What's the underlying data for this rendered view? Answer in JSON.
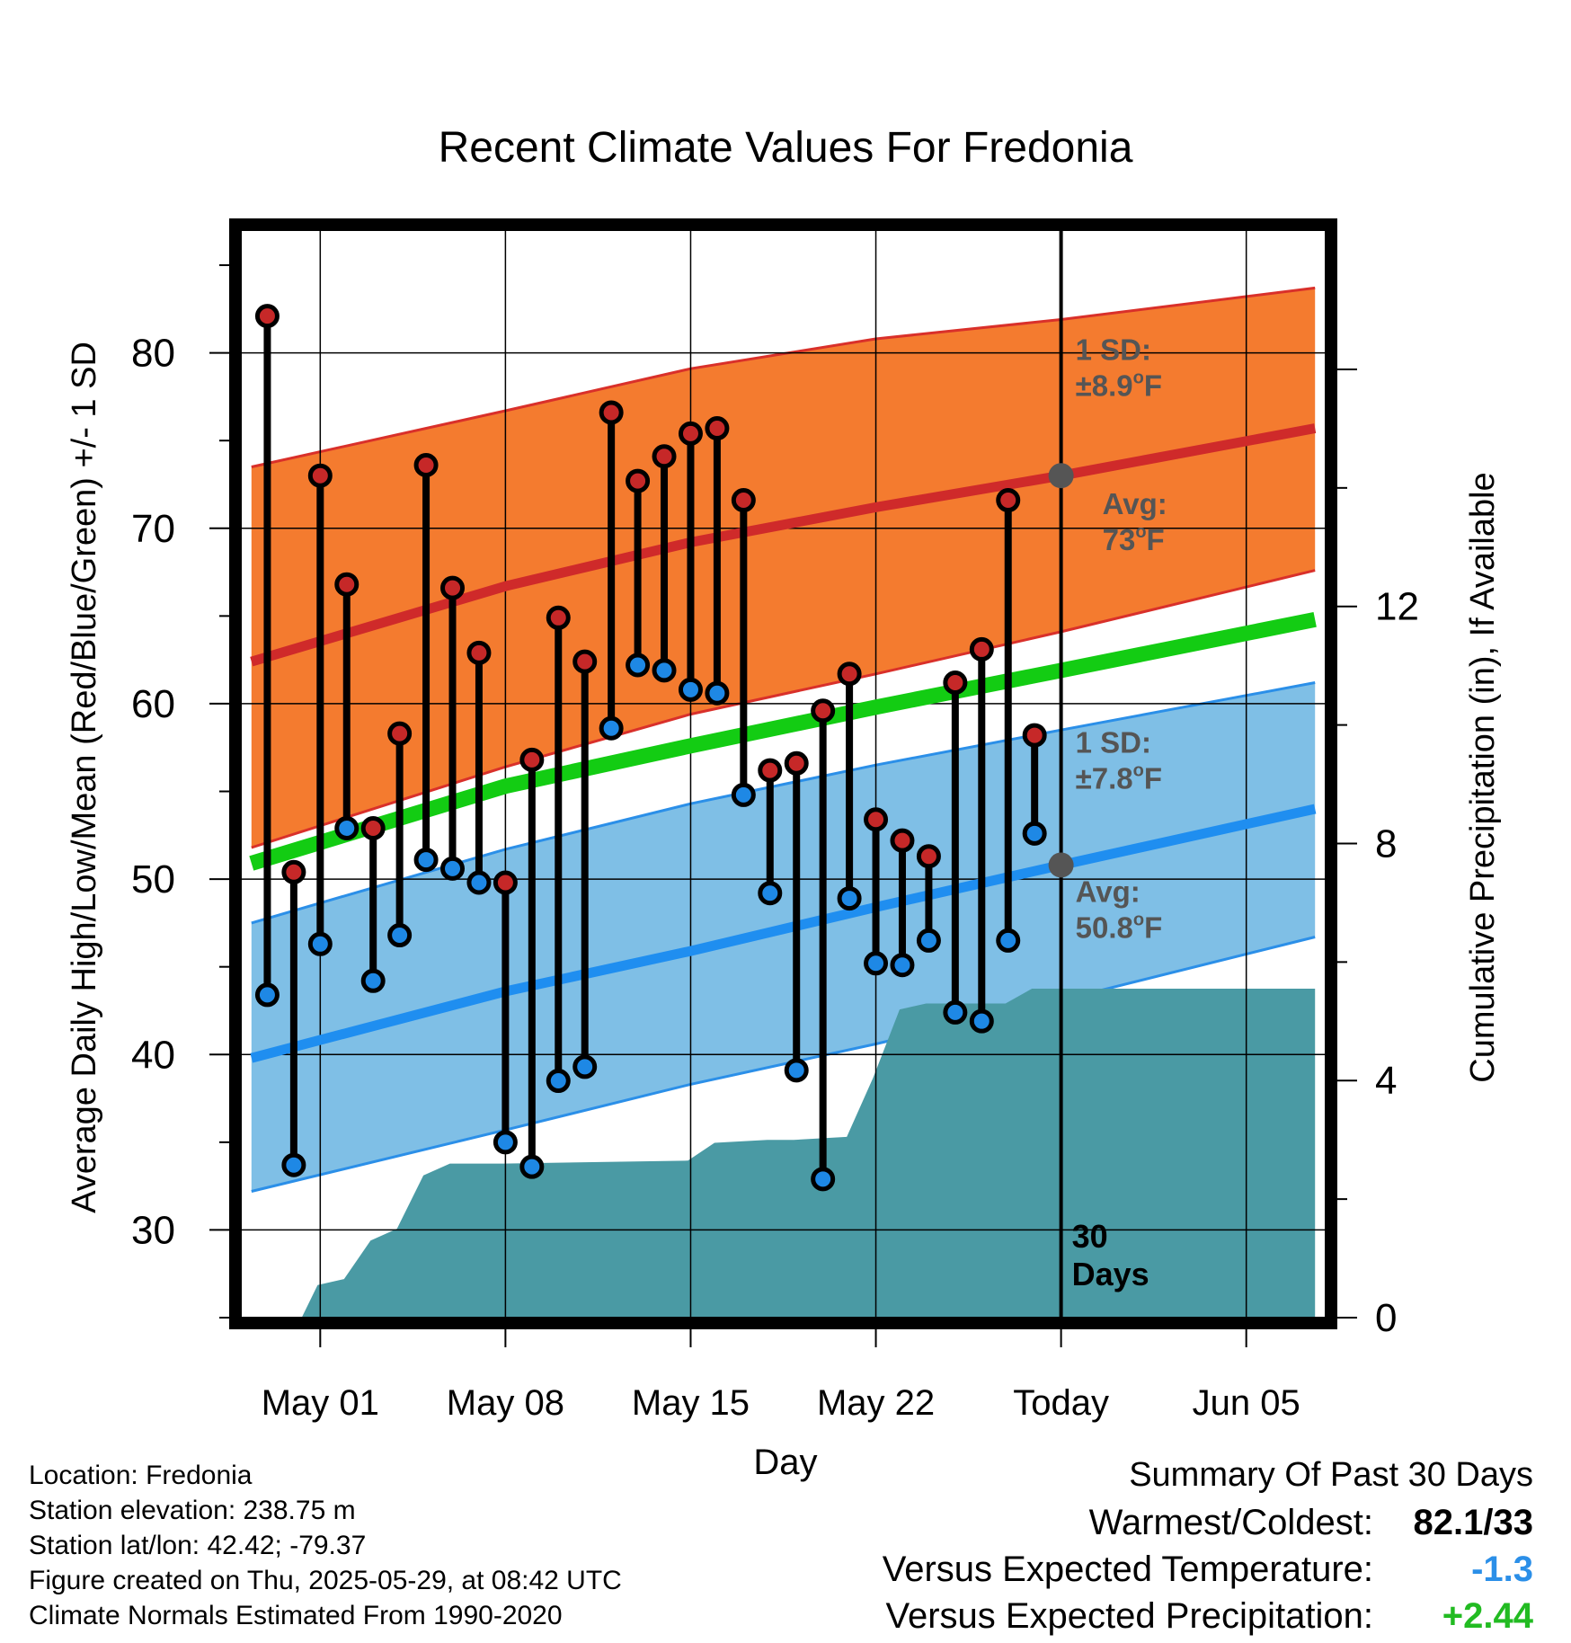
{
  "chart_data": {
    "type": "line",
    "title": "Recent Climate Values For Fredonia",
    "xlabel": "Day",
    "ylabel": "Average Daily High/Low/Mean (Red/Blue/Green) +/- 1 SD",
    "y2label": "Cumulative Precipitation (in), If Available",
    "ylim": [
      25.0,
      87.0
    ],
    "y2lim": [
      0,
      18.35
    ],
    "xlim": [
      -3.0,
      38.0
    ],
    "x_ticks": [
      {
        "x": 0,
        "label": "May 01"
      },
      {
        "x": 7,
        "label": "May 08"
      },
      {
        "x": 14,
        "label": "May 15"
      },
      {
        "x": 21,
        "label": "May 22"
      },
      {
        "x": 28,
        "label": "Today"
      },
      {
        "x": 35,
        "label": "Jun 05"
      }
    ],
    "y_ticks": [
      30,
      40,
      50,
      60,
      70,
      80
    ],
    "y2_ticks": [
      0,
      4,
      8,
      12
    ],
    "grid": true,
    "today_x": 28,
    "days_label": "30\nDays",
    "normals": {
      "x": [
        -2.6,
        7,
        14,
        21,
        28,
        37.6
      ],
      "high_avg": [
        62.4,
        66.7,
        69.2,
        71.2,
        73.0,
        75.7
      ],
      "high_sd_upper": [
        73.5,
        76.7,
        79.1,
        80.8,
        81.9,
        83.7
      ],
      "high_sd_lower": [
        51.8,
        56.4,
        59.4,
        61.7,
        64.1,
        67.6
      ],
      "mean_avg": [
        50.9,
        55.3,
        57.6,
        59.8,
        61.9,
        64.8
      ],
      "low_avg": [
        39.8,
        43.6,
        45.9,
        48.4,
        50.8,
        54.0
      ],
      "low_sd_upper": [
        47.5,
        51.7,
        54.3,
        56.5,
        58.5,
        61.2
      ],
      "low_sd_lower": [
        32.2,
        35.7,
        38.3,
        40.6,
        43.1,
        46.7
      ]
    },
    "series": [
      {
        "name": "High",
        "color": "#c62828",
        "values": [
          82.1,
          50.4,
          73.0,
          66.8,
          52.9,
          58.3,
          73.6,
          66.6,
          62.9,
          49.8,
          56.8,
          64.9,
          62.4,
          76.6,
          72.7,
          74.1,
          75.4,
          75.7,
          71.6,
          56.2,
          56.6,
          59.6,
          61.7,
          53.4,
          52.2,
          51.3,
          61.2,
          63.1,
          71.6,
          58.2
        ]
      },
      {
        "name": "Low",
        "color": "#1e88e5",
        "values": [
          43.4,
          33.7,
          46.3,
          52.9,
          44.2,
          46.8,
          51.1,
          50.6,
          49.8,
          35.0,
          33.6,
          38.5,
          39.3,
          58.6,
          62.2,
          61.9,
          60.8,
          60.6,
          54.8,
          49.2,
          39.1,
          32.9,
          48.9,
          45.2,
          45.1,
          46.5,
          42.4,
          41.9,
          46.5,
          52.6
        ]
      }
    ],
    "days_x": [
      -2,
      -1,
      0,
      1,
      2,
      3,
      4,
      5,
      6,
      7,
      8,
      9,
      10,
      11,
      12,
      13,
      14,
      15,
      16,
      17,
      18,
      19,
      20,
      21,
      22,
      23,
      24,
      25,
      26,
      27
    ],
    "precip": {
      "x": [
        -2.6,
        -0.7,
        -0.1,
        0.9,
        1.9,
        2.9,
        3.9,
        4.9,
        6.9,
        13.9,
        14.9,
        16.9,
        17.9,
        19.9,
        20.9,
        21.9,
        22.9,
        24.9,
        25.9,
        26.9,
        37.6
      ],
      "values": [
        0,
        0,
        0.55,
        0.65,
        1.3,
        1.5,
        2.4,
        2.6,
        2.6,
        2.65,
        2.95,
        3.0,
        3.0,
        3.05,
        4.05,
        5.2,
        5.3,
        5.3,
        5.3,
        5.55,
        5.55
      ]
    },
    "annotations": {
      "high_sd": "1 SD:",
      "high_sd_value": "±8.9",
      "high_avg": "Avg:",
      "high_avg_value": "73",
      "high_avg_point": 73.0,
      "low_sd": "1 SD:",
      "low_sd_value": "±7.8",
      "low_avg": "Avg:",
      "low_avg_value": "50.8",
      "low_avg_point": 50.8,
      "degree": "o",
      "unit": "F"
    },
    "colors": {
      "high_band": "#f47b2f",
      "high_band_edge": "#d9302a",
      "high_avg_line": "#cf2a2a",
      "mean_line": "#13cc13",
      "low_band": "#7fbfe6",
      "low_band_edge": "#2b8fe8",
      "low_avg_line": "#1f8ef0",
      "precip": "#4a9aa4",
      "annotation": "#555555",
      "high_marker": "#c62828",
      "low_marker": "#1e88e5"
    }
  },
  "footer": {
    "location": "Location: Fredonia",
    "elevation": "Station elevation: 238.75 m",
    "latlon": "Station lat/lon: 42.42; -79.37",
    "created": "Figure created on Thu, 2025-05-29, at 08:42 UTC",
    "normals": "Climate Normals Estimated From 1990-2020"
  },
  "summary": {
    "title": "Summary Of Past 30 Days",
    "warm_cold_label": "Warmest/Coldest:",
    "warm_cold_value": "82.1/33",
    "temp_label": "Versus Expected Temperature:",
    "temp_value": "-1.3",
    "temp_color": "#2b8fe8",
    "precip_label": "Versus Expected Precipitation:",
    "precip_value": "+2.44",
    "precip_color": "#22bb22"
  }
}
